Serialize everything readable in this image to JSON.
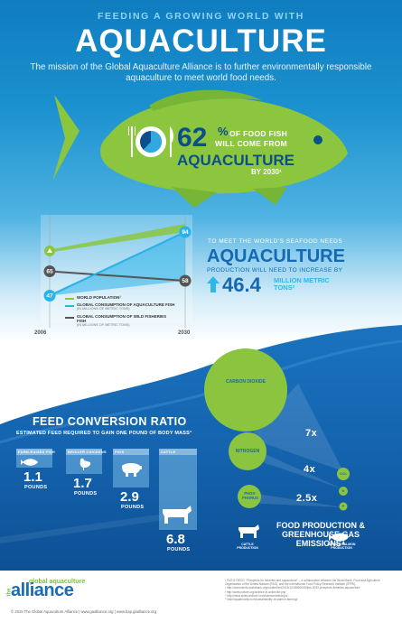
{
  "header": {
    "kicker": "FEEDING A GROWING WORLD WITH",
    "title": "AQUACULTURE",
    "mission": "The mission of the Global Aquaculture Alliance is to further environmentally responsible aquaculture to meet world food needs."
  },
  "fish_stat": {
    "percent": "62",
    "percent_symbol": "%",
    "line1": "OF FOOD FISH",
    "line2": "WILL COME FROM",
    "line3": "AQUACULTURE",
    "line4": "BY 2030¹",
    "pie_fraction": 0.62
  },
  "chart_data": {
    "type": "line",
    "x": [
      "2006",
      "2030"
    ],
    "series": [
      {
        "name": "WORLD POPULATION¹",
        "values": [
          null,
          null
        ],
        "color": "#8bc53f"
      },
      {
        "name": "GLOBAL CONSUMPTION OF AQUACULTURE FISH",
        "unit": "(IN MILLIONS OF METRIC TONS)",
        "values": [
          47,
          94
        ],
        "color": "#29b3e8"
      },
      {
        "name": "GLOBAL CONSUMPTION OF WILD FISHERIES FISH",
        "unit": "(IN MILLIONS OF METRIC TONS)",
        "values": [
          65,
          58
        ],
        "color": "#555555"
      }
    ],
    "point_labels": {
      "aqua_start": "47",
      "aqua_end": "94",
      "wild_start": "65",
      "wild_end": "58"
    },
    "ylim": [
      40,
      100
    ]
  },
  "seafood_need": {
    "intro": "TO MEET THE WORLD'S SEAFOOD NEEDS",
    "word": "AQUACULTURE",
    "production": "PRODUCTION WILL NEED TO INCREASE BY",
    "value": "46.4",
    "units": "MILLION METRIC TONS²"
  },
  "fcr": {
    "title": "FEED CONVERSION RATIO",
    "subtitle": "ESTIMATED FEED REQUIRED TO GAIN ONE POUND OF BODY MASS³",
    "items": [
      {
        "animal": "FARM-RAISED FISH",
        "value": "1.1",
        "unit": "POUNDS",
        "level": 1.1
      },
      {
        "animal": "BROILER CHICKENS",
        "value": "1.7",
        "unit": "POUNDS",
        "level": 1.7
      },
      {
        "animal": "PIGS",
        "value": "2.9",
        "unit": "POUNDS",
        "level": 2.9
      },
      {
        "animal": "CATTLE",
        "value": "6.8",
        "unit": "POUNDS",
        "level": 6.8
      }
    ]
  },
  "emissions": {
    "carbon": "CARBON DIOXIDE",
    "nitrogen": "NITROGEN",
    "phosphorus": "PHOS- PHORUS",
    "ratio_carbon": "7x",
    "ratio_nitrogen": "4x",
    "ratio_phos": "2.5x",
    "co2": "CO₂",
    "n": "N",
    "p": "P",
    "title": "FOOD PRODUCTION & GREENHOUSE GAS EMISSIONS⁴",
    "cattle_cap": "CATTLE PRODUCTION",
    "salmon_cap": "FARMED SALMON PRODUCTION"
  },
  "footer": {
    "logo_top": "global aquaculture",
    "logo_the": "the",
    "logo_main": "alliance",
    "copyright": "© 2015 The Global Aquaculture Alliance | www.gaalliance.org | www.bap.gaalliance.org",
    "refs": [
      "¹ FAO & OECD. \"Prospects for fisheries and aquaculture\" – a collaboration between the World Bank, Food and Agriculture Organization of the United Nations (FAO), and the International Food Policy Research Institute (IFPRI).",
      "² http://documents.worldbank.org/curated/en/2013/12/18882045/fish-2030-prospects-fisheries-aquaculture",
      "³ http://www.nature.org/science-in-action/fcr.php",
      "⁴ http://www.sciencedirect.com/science/article/pii/...",
      "⁵ http://aquabounty.com/sustainability-of-salmon-farming/"
    ]
  },
  "colors": {
    "navy": "#0b4f8a",
    "brand_blue": "#1569b4",
    "sky": "#29b3e8",
    "green": "#8bc53f",
    "dark_gray": "#555555"
  }
}
